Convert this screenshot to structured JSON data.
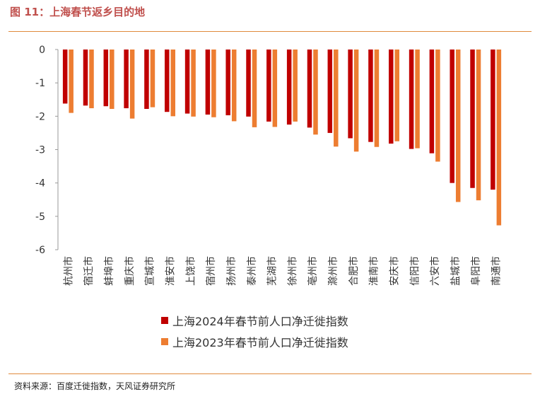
{
  "figure": {
    "title": "图 11：上海春节返乡目的地",
    "source": "资料来源：百度迁徙指数，天风证券研究所"
  },
  "colors": {
    "series_2024": "#c00000",
    "series_2023": "#ed7d31"
  },
  "chart_data": {
    "type": "bar",
    "title": "上海春节返乡目的地",
    "xlabel": "",
    "ylabel": "",
    "ylim": [
      -6,
      0
    ],
    "yticks": [
      0,
      -1,
      -2,
      -3,
      -4,
      -5,
      -6
    ],
    "categories": [
      "杭州市",
      "宿迁市",
      "蚌埠市",
      "重庆市",
      "宣城市",
      "淮安市",
      "上饶市",
      "宿州市",
      "扬州市",
      "泰州市",
      "芜湖市",
      "徐州市",
      "亳州市",
      "滁州市",
      "合肥市",
      "淮南市",
      "安庆市",
      "信阳市",
      "六安市",
      "盐城市",
      "阜阳市",
      "南通市"
    ],
    "series": [
      {
        "name": "上海2024年春节前人口净迁徙指数",
        "values": [
          -1.62,
          -1.68,
          -1.7,
          -1.76,
          -1.78,
          -1.87,
          -1.92,
          -1.95,
          -1.97,
          -2.01,
          -2.16,
          -2.25,
          -2.34,
          -2.5,
          -2.66,
          -2.77,
          -2.82,
          -2.98,
          -3.11,
          -4.0,
          -4.15,
          -4.2
        ]
      },
      {
        "name": "上海2023年春节前人口净迁徙指数",
        "values": [
          -1.9,
          -1.76,
          -1.78,
          -2.07,
          -1.73,
          -2.0,
          -2.01,
          -2.03,
          -2.15,
          -2.33,
          -2.32,
          -2.16,
          -2.55,
          -2.91,
          -3.06,
          -2.92,
          -2.75,
          -2.96,
          -3.36,
          -4.57,
          -4.52,
          -5.27
        ]
      }
    ],
    "legend_position": "bottom"
  }
}
